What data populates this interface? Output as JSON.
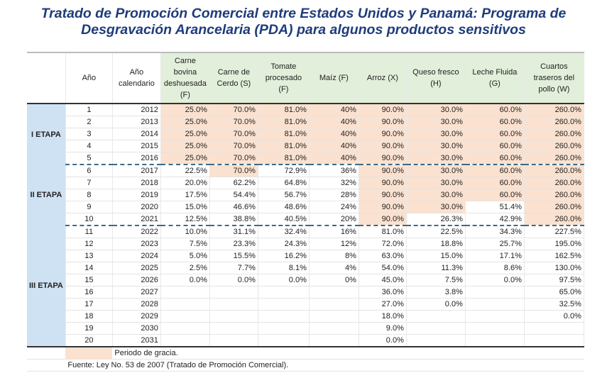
{
  "title": {
    "line1": "Tratado de Promoción Comercial entre Estados Unidos y Panamá: Programa de",
    "line2": "Desgravación Arancelaria (PDA) para algunos productos sensitivos"
  },
  "table": {
    "headers": [
      "",
      "Año",
      "Año calendario",
      "Carne bovina deshuesada (F)",
      "Carne de Cerdo (S)",
      "Tomate procesado (F)",
      "Maíz (F)",
      "Arroz (X)",
      "Queso fresco (H)",
      "Leche Fluida (G)",
      "Cuartos traseros del pollo (W)"
    ],
    "stages": [
      {
        "label": "I ETAPA",
        "rows": 5
      },
      {
        "label": "II ETAPA",
        "rows": 5
      },
      {
        "label": "III ETAPA",
        "rows": 10
      }
    ],
    "rows": [
      [
        "1",
        "2012",
        "25.0%",
        "70.0%",
        "81.0%",
        "40%",
        "90.0%",
        "30.0%",
        "60.0%",
        "260.0%"
      ],
      [
        "2",
        "2013",
        "25.0%",
        "70.0%",
        "81.0%",
        "40%",
        "90.0%",
        "30.0%",
        "60.0%",
        "260.0%"
      ],
      [
        "3",
        "2014",
        "25.0%",
        "70.0%",
        "81.0%",
        "40%",
        "90.0%",
        "30.0%",
        "60.0%",
        "260.0%"
      ],
      [
        "4",
        "2015",
        "25.0%",
        "70.0%",
        "81.0%",
        "40%",
        "90.0%",
        "30.0%",
        "60.0%",
        "260.0%"
      ],
      [
        "5",
        "2016",
        "25.0%",
        "70.0%",
        "81.0%",
        "40%",
        "90.0%",
        "30.0%",
        "60.0%",
        "260.0%"
      ],
      [
        "6",
        "2017",
        "22.5%",
        "70.0%",
        "72.9%",
        "36%",
        "90.0%",
        "30.0%",
        "60.0%",
        "260.0%"
      ],
      [
        "7",
        "2018",
        "20.0%",
        "62.2%",
        "64.8%",
        "32%",
        "90.0%",
        "30.0%",
        "60.0%",
        "260.0%"
      ],
      [
        "8",
        "2019",
        "17.5%",
        "54.4%",
        "56.7%",
        "28%",
        "90.0%",
        "30.0%",
        "60.0%",
        "260.0%"
      ],
      [
        "9",
        "2020",
        "15.0%",
        "46.6%",
        "48.6%",
        "24%",
        "90.0%",
        "30.0%",
        "51.4%",
        "260.0%"
      ],
      [
        "10",
        "2021",
        "12.5%",
        "38.8%",
        "40.5%",
        "20%",
        "90.0%",
        "26.3%",
        "42.9%",
        "260.0%"
      ],
      [
        "11",
        "2022",
        "10.0%",
        "31.1%",
        "32.4%",
        "16%",
        "81.0%",
        "22.5%",
        "34.3%",
        "227.5%"
      ],
      [
        "12",
        "2023",
        "7.5%",
        "23.3%",
        "24.3%",
        "12%",
        "72.0%",
        "18.8%",
        "25.7%",
        "195.0%"
      ],
      [
        "13",
        "2024",
        "5.0%",
        "15.5%",
        "16.2%",
        "8%",
        "63.0%",
        "15.0%",
        "17.1%",
        "162.5%"
      ],
      [
        "14",
        "2025",
        "2.5%",
        "7.7%",
        "8.1%",
        "4%",
        "54.0%",
        "11.3%",
        "8.6%",
        "130.0%"
      ],
      [
        "15",
        "2026",
        "0.0%",
        "0.0%",
        "0.0%",
        "0%",
        "45.0%",
        "7.5%",
        "0.0%",
        "97.5%"
      ],
      [
        "16",
        "2027",
        "",
        "",
        "",
        "",
        "36.0%",
        "3.8%",
        "",
        "65.0%"
      ],
      [
        "17",
        "2028",
        "",
        "",
        "",
        "",
        "27.0%",
        "0.0%",
        "",
        "32.5%"
      ],
      [
        "18",
        "2029",
        "",
        "",
        "",
        "",
        "18.0%",
        "",
        "",
        "0.0%"
      ],
      [
        "19",
        "2030",
        "",
        "",
        "",
        "",
        "9.0%",
        "",
        "",
        ""
      ],
      [
        "20",
        "2031",
        "",
        "",
        "",
        "",
        "0.0%",
        "",
        "",
        ""
      ]
    ],
    "grace_period": [
      [
        1,
        1,
        1,
        1,
        1,
        1,
        1,
        1
      ],
      [
        1,
        1,
        1,
        1,
        1,
        1,
        1,
        1
      ],
      [
        1,
        1,
        1,
        1,
        1,
        1,
        1,
        1
      ],
      [
        1,
        1,
        1,
        1,
        1,
        1,
        1,
        1
      ],
      [
        1,
        1,
        1,
        1,
        1,
        1,
        1,
        1
      ],
      [
        0,
        1,
        0,
        0,
        1,
        1,
        1,
        1
      ],
      [
        0,
        0,
        0,
        0,
        1,
        1,
        1,
        1
      ],
      [
        0,
        0,
        0,
        0,
        1,
        1,
        1,
        1
      ],
      [
        0,
        0,
        0,
        0,
        1,
        1,
        0,
        1
      ],
      [
        0,
        0,
        0,
        0,
        1,
        0,
        0,
        1
      ]
    ]
  },
  "legend": {
    "label": "Periodo de gracia."
  },
  "source": "Fuente: Ley No. 53 de 2007 (Tratado de Promoción Comercial).",
  "colors": {
    "title": "#1f3c7a",
    "grace": "#fbe1cf",
    "header_products": "#e2efda",
    "stage_column": "#cfe2f3",
    "divider": "#3d6a84"
  }
}
